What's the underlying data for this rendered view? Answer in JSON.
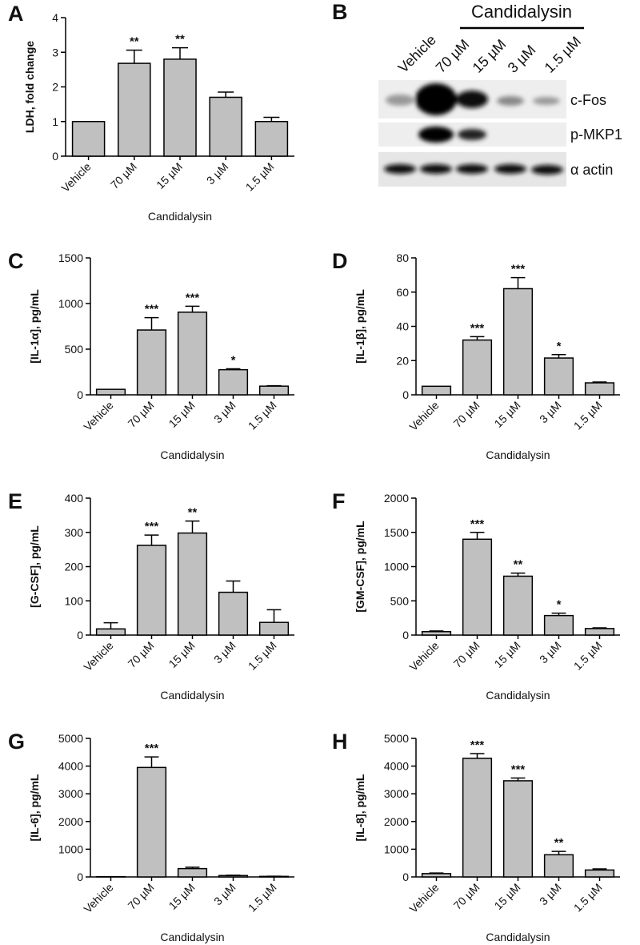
{
  "chart_data": [
    {
      "type": "bar",
      "panel": "A",
      "ylabel": "LDH, fold change",
      "xlabel": "Candidalysin",
      "categories": [
        "Vehicle",
        "70 µM",
        "15 µM",
        "3 µM",
        "1.5 µM"
      ],
      "values": [
        1.0,
        2.68,
        2.8,
        1.7,
        1.0
      ],
      "errors": [
        null,
        0.38,
        0.33,
        0.15,
        0.12
      ],
      "annotations": [
        null,
        "**",
        "**",
        null,
        null
      ],
      "color": "#c0c0c0",
      "ylim": [
        0,
        4
      ],
      "yticks": [
        0,
        1,
        2,
        3,
        4
      ]
    },
    {
      "type": "bar",
      "panel": "C",
      "ylabel": "[IL-1α], pg/mL",
      "xlabel": "Candidalysin",
      "categories": [
        "Vehicle",
        "70 µM",
        "15 µM",
        "3 µM",
        "1.5 µM"
      ],
      "values": [
        60,
        710,
        905,
        275,
        95
      ],
      "errors": [
        null,
        135,
        65,
        10,
        5
      ],
      "annotations": [
        null,
        "***",
        "***",
        "*",
        null
      ],
      "color": "#c0c0c0",
      "ylim": [
        0,
        1500
      ],
      "yticks": [
        0,
        500,
        1000,
        1500
      ]
    },
    {
      "type": "bar",
      "panel": "D",
      "ylabel": "[IL-1β], pg/mL",
      "xlabel": "Candidalysin",
      "categories": [
        "Vehicle",
        "70 µM",
        "15 µM",
        "3 µM",
        "1.5 µM"
      ],
      "values": [
        5,
        32,
        62,
        21.5,
        7
      ],
      "errors": [
        null,
        2,
        6.5,
        2,
        0.5
      ],
      "annotations": [
        null,
        "***",
        "***",
        "*",
        null
      ],
      "color": "#c0c0c0",
      "ylim": [
        0,
        80
      ],
      "yticks": [
        0,
        20,
        40,
        60,
        80
      ]
    },
    {
      "type": "bar",
      "panel": "E",
      "ylabel": "[G-CSF], pg/mL",
      "xlabel": "Candidalysin",
      "categories": [
        "Vehicle",
        "70 µM",
        "15 µM",
        "3 µM",
        "1.5 µM"
      ],
      "values": [
        18,
        262,
        298,
        125,
        37
      ],
      "errors": [
        18,
        30,
        35,
        33,
        37
      ],
      "annotations": [
        null,
        "***",
        "**",
        null,
        null
      ],
      "color": "#c0c0c0",
      "ylim": [
        0,
        400
      ],
      "yticks": [
        0,
        100,
        200,
        300,
        400
      ]
    },
    {
      "type": "bar",
      "panel": "F",
      "ylabel": "[GM-CSF], pg/mL",
      "xlabel": "Candidalysin",
      "categories": [
        "Vehicle",
        "70 µM",
        "15 µM",
        "3 µM",
        "1.5 µM"
      ],
      "values": [
        50,
        1400,
        860,
        285,
        95
      ],
      "errors": [
        10,
        100,
        45,
        35,
        10
      ],
      "annotations": [
        null,
        "***",
        "**",
        "*",
        null
      ],
      "color": "#c0c0c0",
      "ylim": [
        0,
        2000
      ],
      "yticks": [
        0,
        500,
        1000,
        1500,
        2000
      ]
    },
    {
      "type": "bar",
      "panel": "G",
      "ylabel": "[IL-6], pg/mL",
      "xlabel": "Candidalysin",
      "categories": [
        "Vehicle",
        "70 µM",
        "15 µM",
        "3 µM",
        "1.5 µM"
      ],
      "values": [
        10,
        3950,
        300,
        50,
        20
      ],
      "errors": [
        null,
        380,
        50,
        10,
        5
      ],
      "annotations": [
        null,
        "***",
        null,
        null,
        null
      ],
      "color": "#c0c0c0",
      "ylim": [
        0,
        5000
      ],
      "yticks": [
        0,
        1000,
        2000,
        3000,
        4000,
        5000
      ]
    },
    {
      "type": "bar",
      "panel": "H",
      "ylabel": "[IL-8], pg/mL",
      "xlabel": "Candidalysin",
      "categories": [
        "Vehicle",
        "70 µM",
        "15 µM",
        "3 µM",
        "1.5 µM"
      ],
      "values": [
        120,
        4280,
        3470,
        800,
        250
      ],
      "errors": [
        20,
        170,
        100,
        120,
        40
      ],
      "annotations": [
        null,
        "***",
        "***",
        "**",
        null
      ],
      "color": "#c0c0c0",
      "ylim": [
        0,
        5000
      ],
      "yticks": [
        0,
        1000,
        2000,
        3000,
        4000,
        5000
      ]
    }
  ],
  "blot": {
    "panel": "B",
    "group_label": "Candidalysin",
    "lanes": [
      "Vehicle",
      "70 µM",
      "15 µM",
      "3 µM",
      "1.5 µM"
    ],
    "rows": [
      "c-Fos",
      "p-MKP1",
      "α actin"
    ]
  }
}
